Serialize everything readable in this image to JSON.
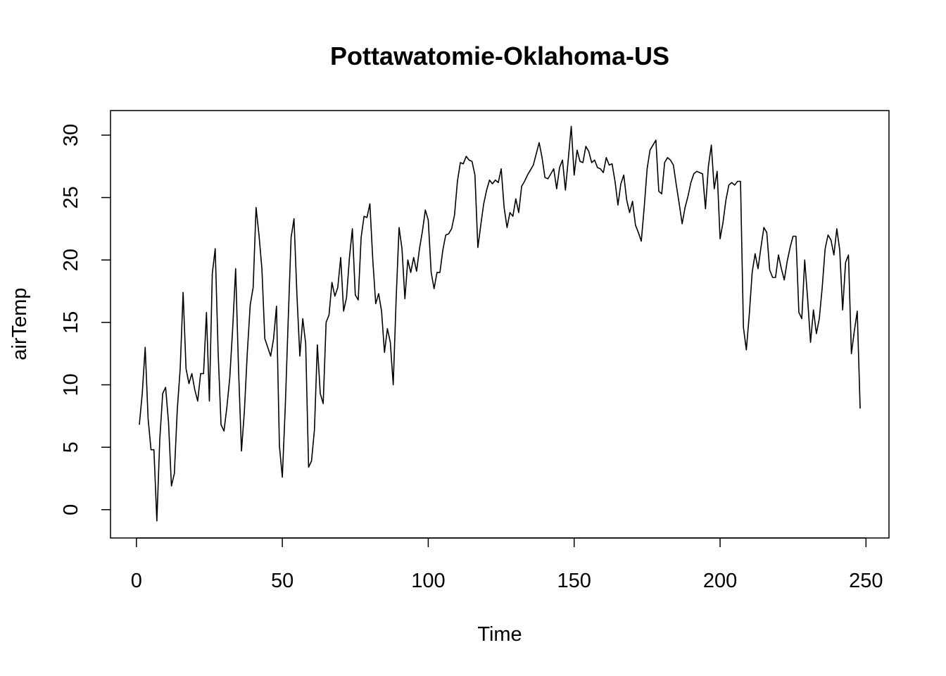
{
  "chart_data": {
    "type": "line",
    "title": "Pottawatomie-Oklahoma-US",
    "xlabel": "Time",
    "ylabel": "airTemp",
    "xlim": [
      1,
      248
    ],
    "ylim": [
      -1,
      30.7
    ],
    "xticks": [
      0,
      50,
      100,
      150,
      200,
      250
    ],
    "yticks": [
      0,
      5,
      10,
      15,
      20,
      25,
      30
    ],
    "grid": false,
    "legend": "none",
    "line_color": "#000000",
    "series": [
      {
        "x_start": 1,
        "x_step": 1,
        "values": [
          6.8,
          9.3,
          13.0,
          7.3,
          4.8,
          4.8,
          -0.9,
          5.6,
          9.3,
          9.8,
          7.0,
          1.9,
          2.9,
          8.0,
          11.3,
          17.4,
          11.3,
          10.1,
          10.9,
          9.6,
          8.7,
          10.9,
          10.9,
          15.8,
          8.7,
          18.9,
          20.9,
          12.6,
          6.8,
          6.3,
          8.2,
          10.6,
          14.6,
          19.3,
          11.2,
          4.7,
          7.9,
          12.6,
          16.4,
          17.8,
          24.2,
          22.0,
          19.3,
          13.7,
          13.0,
          12.3,
          13.7,
          16.3,
          5.1,
          2.6,
          8.2,
          15.1,
          21.8,
          23.3,
          17.2,
          12.3,
          15.3,
          13.3,
          3.4,
          3.9,
          6.4,
          13.2,
          9.3,
          8.5,
          15.0,
          15.6,
          18.2,
          17.1,
          17.8,
          20.2,
          15.9,
          17.0,
          20.2,
          22.5,
          17.2,
          16.8,
          21.8,
          23.5,
          23.4,
          24.5,
          20.0,
          16.5,
          17.3,
          15.9,
          12.6,
          14.5,
          13.4,
          10.0,
          16.9,
          22.6,
          20.9,
          16.9,
          20.0,
          19.0,
          20.2,
          19.1,
          20.9,
          22.3,
          24.0,
          23.2,
          19.0,
          17.7,
          19.0,
          19.0,
          20.8,
          22.0,
          22.1,
          22.5,
          23.6,
          26.3,
          27.8,
          27.7,
          28.3,
          28.0,
          27.9,
          26.8,
          21.0,
          22.8,
          24.5,
          25.6,
          26.4,
          26.1,
          26.4,
          26.2,
          27.3,
          24.2,
          22.6,
          23.8,
          23.5,
          24.9,
          23.8,
          25.9,
          26.3,
          26.8,
          27.2,
          27.6,
          28.5,
          29.4,
          28.2,
          26.6,
          26.5,
          26.9,
          27.3,
          25.7,
          27.4,
          28.0,
          25.6,
          28.1,
          30.7,
          26.8,
          28.8,
          27.9,
          27.8,
          29.1,
          28.7,
          27.8,
          28.0,
          27.4,
          27.3,
          27.0,
          28.2,
          27.6,
          27.7,
          26.3,
          24.4,
          26.1,
          26.8,
          24.8,
          23.8,
          24.7,
          22.8,
          22.2,
          21.5,
          24.2,
          27.3,
          28.8,
          29.2,
          29.6,
          25.5,
          25.3,
          27.8,
          28.2,
          28.0,
          27.6,
          26.0,
          24.5,
          22.9,
          24.2,
          25.1,
          26.2,
          26.9,
          27.1,
          27.0,
          26.9,
          24.1,
          27.5,
          29.2,
          25.7,
          27.1,
          21.7,
          23.0,
          24.8,
          26.0,
          26.2,
          26.0,
          26.3,
          26.3,
          14.6,
          12.8,
          15.6,
          19.0,
          20.5,
          19.3,
          21.0,
          22.6,
          22.2,
          19.2,
          18.6,
          18.6,
          20.4,
          19.3,
          18.4,
          19.9,
          21.0,
          21.9,
          21.9,
          15.8,
          15.3,
          20.0,
          16.9,
          13.4,
          16.0,
          14.1,
          15.3,
          17.8,
          20.9,
          22.0,
          21.6,
          20.4,
          22.5,
          20.8,
          16.0,
          19.8,
          20.4,
          12.5,
          14.3,
          15.9,
          8.1
        ]
      }
    ]
  }
}
